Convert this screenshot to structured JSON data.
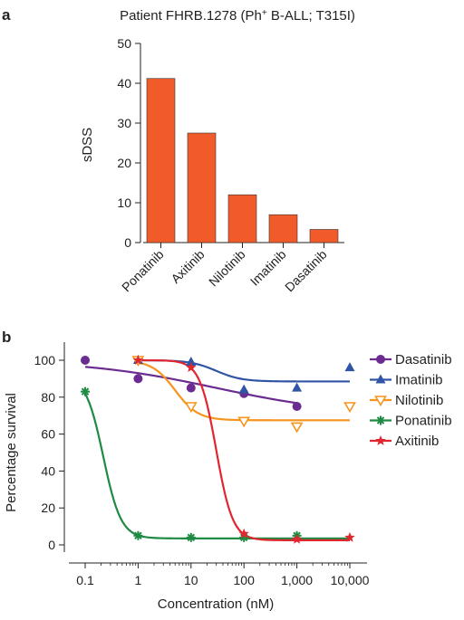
{
  "figure": {
    "panel_a_label": "a",
    "panel_b_label": "b"
  },
  "chart_data": [
    {
      "type": "bar",
      "title_prefix": "Patient FHRB.1278 (Ph",
      "title_sup": "+",
      "title_suffix": " B-ALL; T315I)",
      "categories": [
        "Ponatinib",
        "Axitinib",
        "Nilotinib",
        "Imatinib",
        "Dasatinib"
      ],
      "values": [
        41.2,
        27.5,
        12.0,
        7.0,
        3.3
      ],
      "xlabel": "",
      "ylabel": "sDSS",
      "ylim": [
        0,
        50
      ],
      "yticks": [
        0,
        10,
        20,
        30,
        40,
        50
      ],
      "bar_color": "#f15a29",
      "grid": false
    },
    {
      "type": "scatter",
      "xscale": "log",
      "xlabel": "Concentration (nM)",
      "ylabel": "Percentage survival",
      "xlim": [
        0.1,
        10000
      ],
      "ylim": [
        0,
        100
      ],
      "xticks": [
        0.1,
        1,
        10,
        100,
        1000,
        10000
      ],
      "xtick_labels": [
        "0.1",
        "1",
        "10",
        "100",
        "1,000",
        "10,000"
      ],
      "yticks": [
        0,
        20,
        40,
        60,
        80,
        100
      ],
      "grid": false,
      "legend_position": "right",
      "series": [
        {
          "name": "Dasatinib",
          "color": "#6a2c91",
          "marker": "circle",
          "x": [
            0.1,
            1,
            10,
            100,
            1000
          ],
          "y": [
            100,
            90,
            85,
            82,
            75
          ],
          "fit": {
            "top": 100,
            "bottom": 70,
            "ec50": 30,
            "hill": 0.35,
            "x_range": [
              0.1,
              1000
            ]
          }
        },
        {
          "name": "Imatinib",
          "color": "#2f55a4",
          "marker": "triangle-up",
          "x": [
            1,
            10,
            100,
            1000,
            10000
          ],
          "y": [
            100,
            99,
            84,
            85,
            96
          ],
          "fit": {
            "top": 100,
            "bottom": 88.5,
            "ec50": 30,
            "hill": 1.8,
            "x_range": [
              1,
              10000
            ]
          }
        },
        {
          "name": "Nilotinib",
          "color": "#f7941d",
          "marker": "triangle-down",
          "x": [
            1,
            10,
            100,
            1000,
            10000
          ],
          "y": [
            100,
            75,
            67,
            64,
            75
          ],
          "fit": {
            "top": 100,
            "bottom": 67.5,
            "ec50": 5,
            "hill": 2.0,
            "x_range": [
              1,
              10000
            ]
          }
        },
        {
          "name": "Ponatinib",
          "color": "#1e8a43",
          "marker": "asterisk",
          "x": [
            0.1,
            1,
            10,
            100,
            1000
          ],
          "y": [
            83,
            5,
            4,
            4,
            5
          ],
          "fit": {
            "top": 92,
            "bottom": 3.5,
            "ec50": 0.22,
            "hill": 2.6,
            "x_range": [
              0.1,
              10000
            ]
          }
        },
        {
          "name": "Axitinib",
          "color": "#e0262e",
          "marker": "star",
          "x": [
            1,
            10,
            100,
            1000,
            10000
          ],
          "y": [
            100,
            96,
            6,
            3,
            4
          ],
          "fit": {
            "top": 100,
            "bottom": 2.5,
            "ec50": 30,
            "hill": 2.8,
            "x_range": [
              1,
              10000
            ]
          }
        }
      ]
    }
  ]
}
